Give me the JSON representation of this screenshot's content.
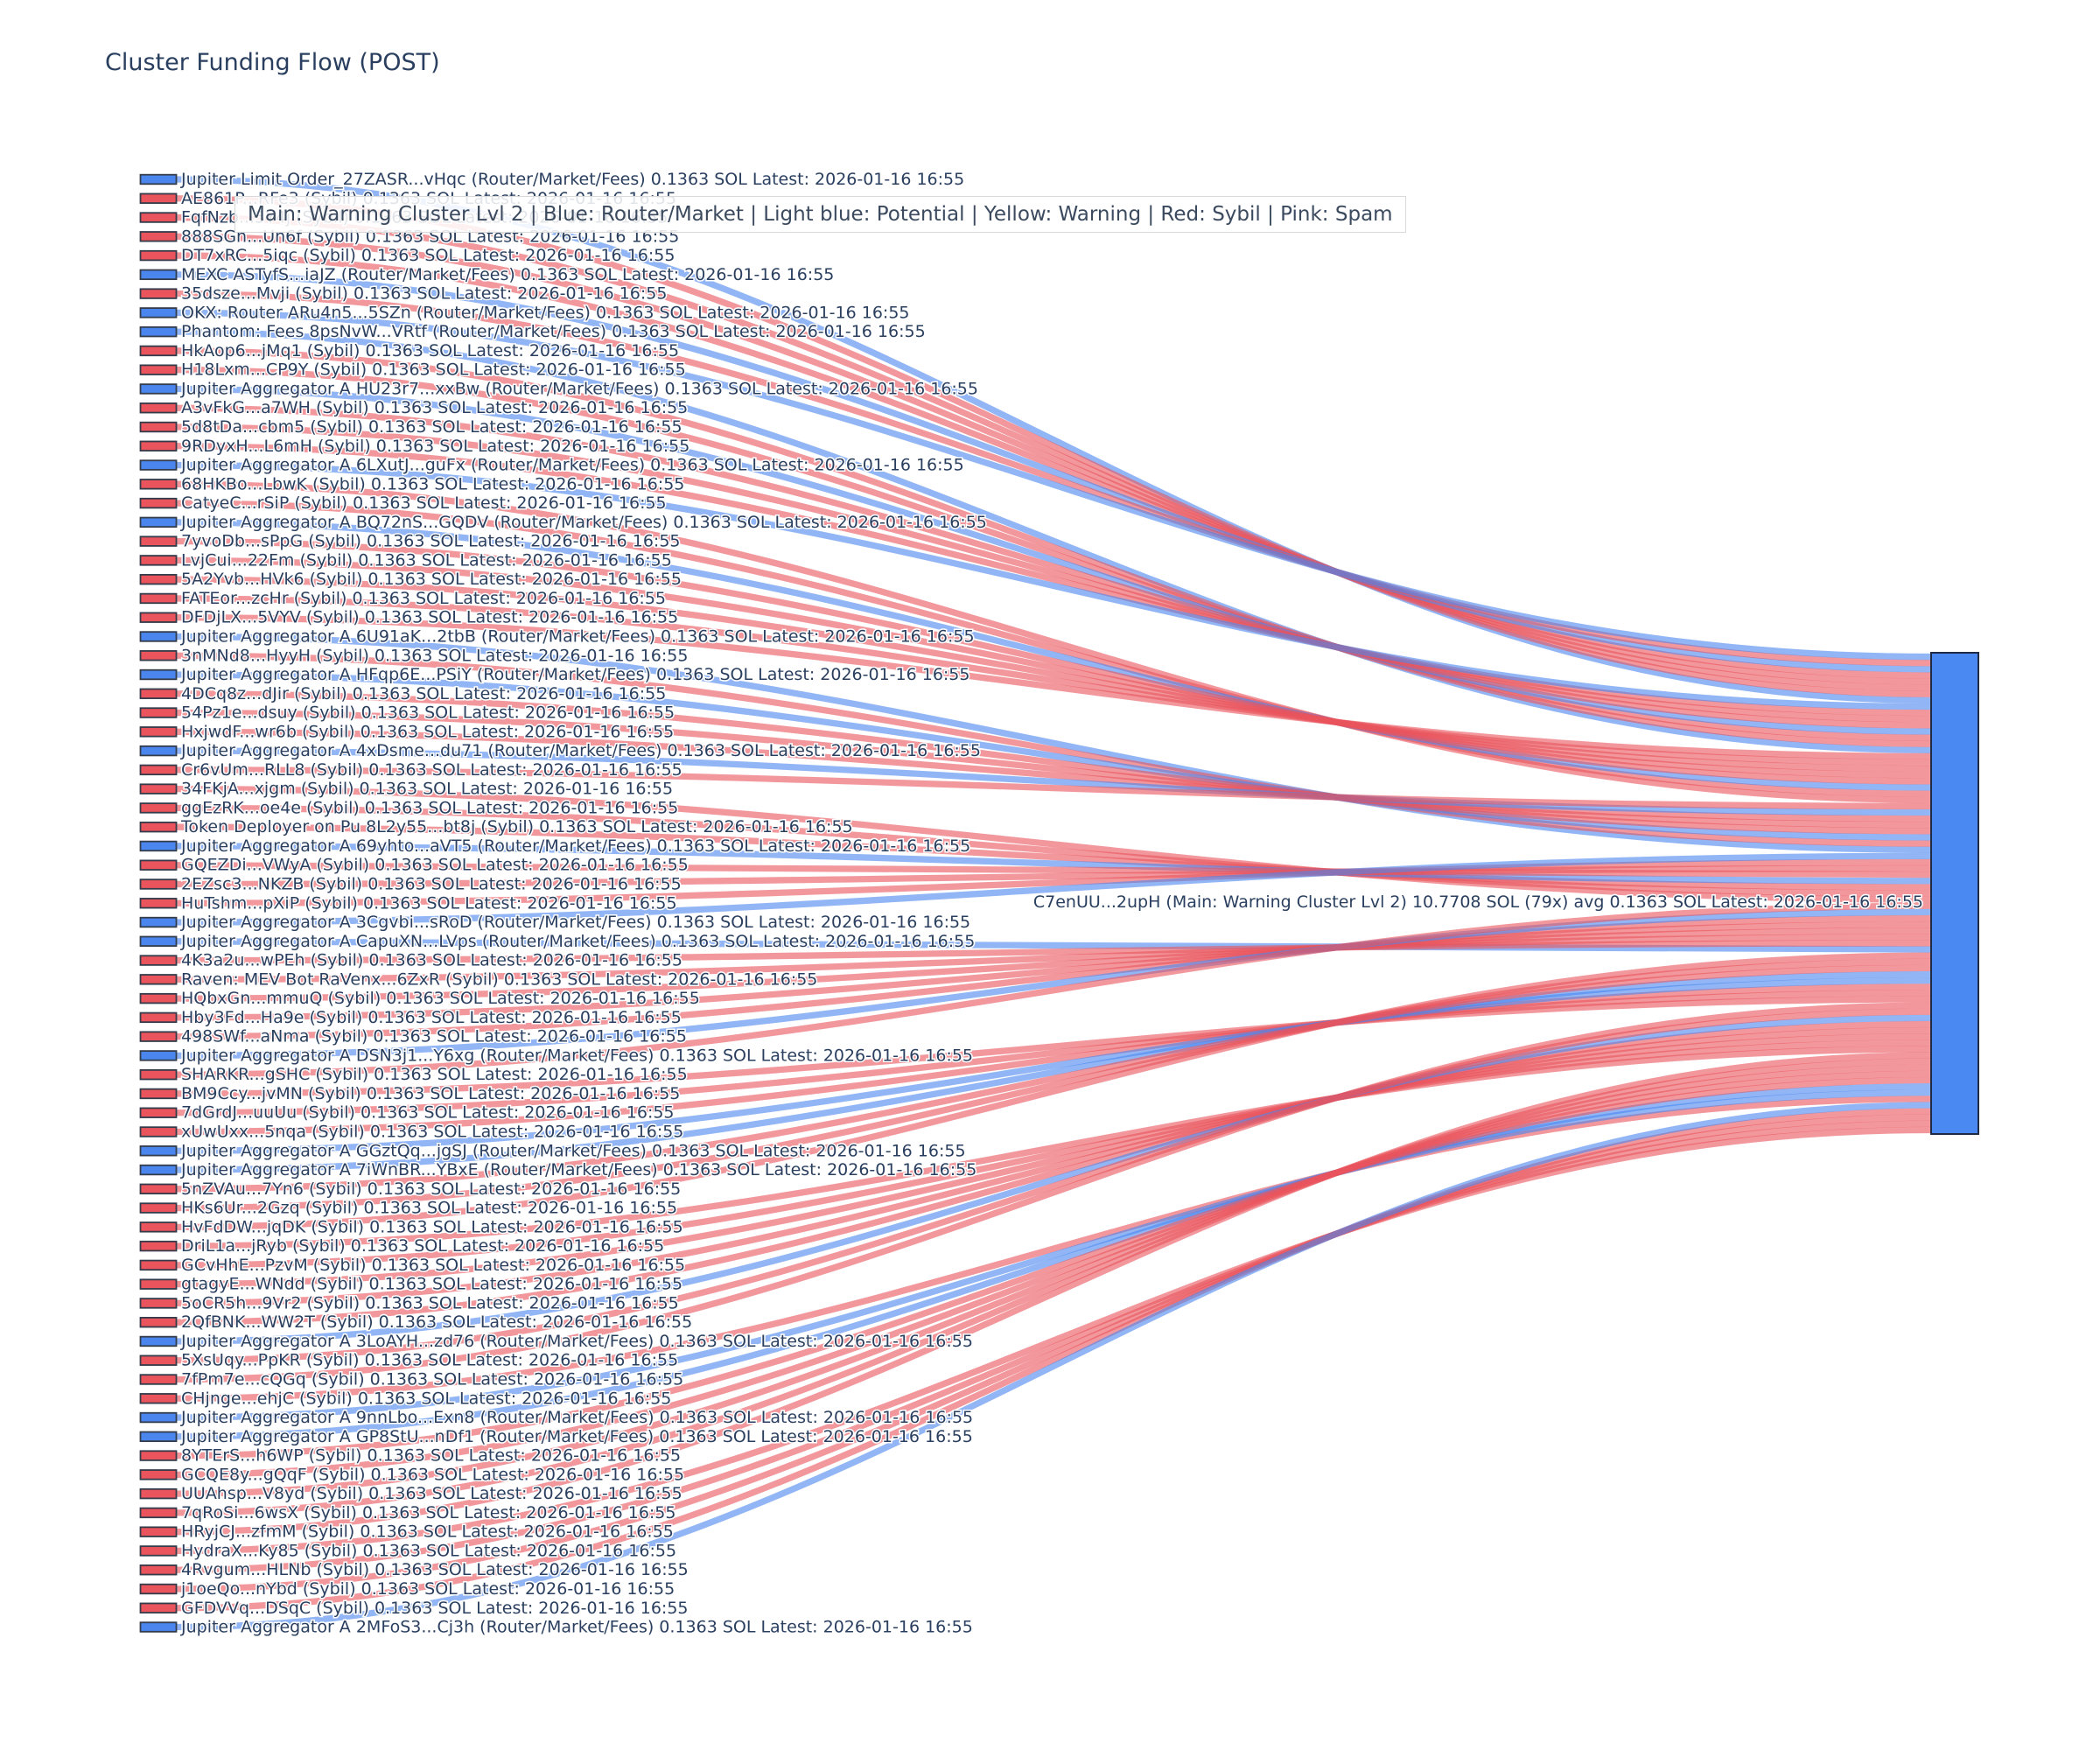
{
  "title": "Cluster Funding Flow (POST)",
  "legend": "Main: Warning Cluster Lvl 2  |  Blue: Router/Market | Light blue: Potential | Yellow: Warning | Red: Sybil | Pink: Spam",
  "colors": {
    "router_blue": "#4a86ee",
    "sybil_red": "#ea545c",
    "node_border": "#333c4a",
    "target_fill": "#4a89f2",
    "target_border": "#1f2a44",
    "text": "#2a3f5f"
  },
  "chart_data": {
    "type": "sankey",
    "title": "Cluster Funding Flow (POST)",
    "orientation": "horizontal, many left sources into one right target",
    "link_value_sol": 0.1363,
    "latest": "2026-01-16 16:55",
    "target": {
      "label": "C7enUU...2upH (Main: Warning Cluster Lvl 2) 10.7708 SOL (79x) avg 0.1363 SOL Latest: 2026-01-16 16:55",
      "name": "C7enUU...2upH",
      "cluster": "Main: Warning Cluster Lvl 2",
      "total_sol": 10.7708,
      "tx_count": 79,
      "avg_sol": 0.1363
    },
    "links": [
      {
        "type": "router",
        "label": "Jupiter Limit Order_27ZASR...vHqc (Router/Market/Fees) 0.1363 SOL Latest: 2026-01-16 16:55"
      },
      {
        "type": "sybil",
        "label": "AE861P...RFe3 (Sybil) 0.1363 SOL Latest: 2026-01-16 16:55"
      },
      {
        "type": "sybil",
        "label": "FqfNzb...5Y4j (Sybil) 0.1363 SOL Latest: 2026-01-16 16:55"
      },
      {
        "type": "sybil",
        "label": "888SGn...Un6f (Sybil) 0.1363 SOL Latest: 2026-01-16 16:55"
      },
      {
        "type": "sybil",
        "label": "DT7xRC...5iqc (Sybil) 0.1363 SOL Latest: 2026-01-16 16:55"
      },
      {
        "type": "router",
        "label": "MEXC ASTyfS...iaJZ (Router/Market/Fees) 0.1363 SOL Latest: 2026-01-16 16:55"
      },
      {
        "type": "sybil",
        "label": "35dsze...Mvji (Sybil) 0.1363 SOL Latest: 2026-01-16 16:55"
      },
      {
        "type": "router",
        "label": "OKX: Router ARu4n5...5SZn (Router/Market/Fees) 0.1363 SOL Latest: 2026-01-16 16:55"
      },
      {
        "type": "router",
        "label": "Phantom: Fees 8psNvW...VRtf (Router/Market/Fees) 0.1363 SOL Latest: 2026-01-16 16:55"
      },
      {
        "type": "sybil",
        "label": "HkAop6...jMq1 (Sybil) 0.1363 SOL Latest: 2026-01-16 16:55"
      },
      {
        "type": "sybil",
        "label": "H18Lxm...CP9Y (Sybil) 0.1363 SOL Latest: 2026-01-16 16:55"
      },
      {
        "type": "router",
        "label": "Jupiter Aggregator A HU23r7...xxBw (Router/Market/Fees) 0.1363 SOL Latest: 2026-01-16 16:55"
      },
      {
        "type": "sybil",
        "label": "A3vFkG...a7WH (Sybil) 0.1363 SOL Latest: 2026-01-16 16:55"
      },
      {
        "type": "sybil",
        "label": "5d8tDa...cbm5 (Sybil) 0.1363 SOL Latest: 2026-01-16 16:55"
      },
      {
        "type": "sybil",
        "label": "9RDyxH...L6mH (Sybil) 0.1363 SOL Latest: 2026-01-16 16:55"
      },
      {
        "type": "router",
        "label": "Jupiter Aggregator A 6LXutJ...guFx (Router/Market/Fees) 0.1363 SOL Latest: 2026-01-16 16:55"
      },
      {
        "type": "sybil",
        "label": "68HKBo...LbwK (Sybil) 0.1363 SOL Latest: 2026-01-16 16:55"
      },
      {
        "type": "sybil",
        "label": "CatyeC...rSiP (Sybil) 0.1363 SOL Latest: 2026-01-16 16:55"
      },
      {
        "type": "router",
        "label": "Jupiter Aggregator A BQ72nS...GQDV (Router/Market/Fees) 0.1363 SOL Latest: 2026-01-16 16:55"
      },
      {
        "type": "sybil",
        "label": "7yvoDb...sPpG (Sybil) 0.1363 SOL Latest: 2026-01-16 16:55"
      },
      {
        "type": "sybil",
        "label": "LvjCui...22Fm (Sybil) 0.1363 SOL Latest: 2026-01-16 16:55"
      },
      {
        "type": "sybil",
        "label": "5A2Yvb...HVk6 (Sybil) 0.1363 SOL Latest: 2026-01-16 16:55"
      },
      {
        "type": "sybil",
        "label": "FATEor...zcHr (Sybil) 0.1363 SOL Latest: 2026-01-16 16:55"
      },
      {
        "type": "sybil",
        "label": "DFDjLX...5VYV (Sybil) 0.1363 SOL Latest: 2026-01-16 16:55"
      },
      {
        "type": "router",
        "label": "Jupiter Aggregator A 6U91aK...2tbB (Router/Market/Fees) 0.1363 SOL Latest: 2026-01-16 16:55"
      },
      {
        "type": "sybil",
        "label": "3nMNd8...HyyH (Sybil) 0.1363 SOL Latest: 2026-01-16 16:55"
      },
      {
        "type": "router",
        "label": "Jupiter Aggregator A HFqp6E...PSiY (Router/Market/Fees) 0.1363 SOL Latest: 2026-01-16 16:55"
      },
      {
        "type": "sybil",
        "label": "4DCq8z...dJir (Sybil) 0.1363 SOL Latest: 2026-01-16 16:55"
      },
      {
        "type": "sybil",
        "label": "54Pz1e...dsuy (Sybil) 0.1363 SOL Latest: 2026-01-16 16:55"
      },
      {
        "type": "sybil",
        "label": "HxjwdF...wr6b (Sybil) 0.1363 SOL Latest: 2026-01-16 16:55"
      },
      {
        "type": "router",
        "label": "Jupiter Aggregator A 4xDsme...du71 (Router/Market/Fees) 0.1363 SOL Latest: 2026-01-16 16:55"
      },
      {
        "type": "sybil",
        "label": "Cr6vUm...RLL8 (Sybil) 0.1363 SOL Latest: 2026-01-16 16:55"
      },
      {
        "type": "sybil",
        "label": "34FKjA...xjgm (Sybil) 0.1363 SOL Latest: 2026-01-16 16:55"
      },
      {
        "type": "sybil",
        "label": "ggEzRK...oe4e (Sybil) 0.1363 SOL Latest: 2026-01-16 16:55"
      },
      {
        "type": "sybil",
        "label": "Token Deployer on Pu 8L2y55...bt8j (Sybil) 0.1363 SOL Latest: 2026-01-16 16:55"
      },
      {
        "type": "router",
        "label": "Jupiter Aggregator A 69yhto...aVT5 (Router/Market/Fees) 0.1363 SOL Latest: 2026-01-16 16:55"
      },
      {
        "type": "sybil",
        "label": "GQEZDi...VWyA (Sybil) 0.1363 SOL Latest: 2026-01-16 16:55"
      },
      {
        "type": "sybil",
        "label": "2EZsc3...NKZB (Sybil) 0.1363 SOL Latest: 2026-01-16 16:55"
      },
      {
        "type": "sybil",
        "label": "HuTshm...pXiP (Sybil) 0.1363 SOL Latest: 2026-01-16 16:55"
      },
      {
        "type": "router",
        "label": "Jupiter Aggregator A 3Cgvbi...sRoD (Router/Market/Fees) 0.1363 SOL Latest: 2026-01-16 16:55"
      },
      {
        "type": "router",
        "label": "Jupiter Aggregator A CapuXN...LVps (Router/Market/Fees) 0.1363 SOL Latest: 2026-01-16 16:55"
      },
      {
        "type": "sybil",
        "label": "4K3a2u...wPEh (Sybil) 0.1363 SOL Latest: 2026-01-16 16:55"
      },
      {
        "type": "sybil",
        "label": "Raven: MEV Bot RaVenx...6ZxR (Sybil) 0.1363 SOL Latest: 2026-01-16 16:55"
      },
      {
        "type": "sybil",
        "label": "HQbxGn...mmuQ (Sybil) 0.1363 SOL Latest: 2026-01-16 16:55"
      },
      {
        "type": "sybil",
        "label": "Hby3Fd...Ha9e (Sybil) 0.1363 SOL Latest: 2026-01-16 16:55"
      },
      {
        "type": "sybil",
        "label": "498SWf...aNma (Sybil) 0.1363 SOL Latest: 2026-01-16 16:55"
      },
      {
        "type": "router",
        "label": "Jupiter Aggregator A DSN3j1...Y6xg (Router/Market/Fees) 0.1363 SOL Latest: 2026-01-16 16:55"
      },
      {
        "type": "sybil",
        "label": "SHARKR...gSHC (Sybil) 0.1363 SOL Latest: 2026-01-16 16:55"
      },
      {
        "type": "sybil",
        "label": "BM9Ccy...jvMN (Sybil) 0.1363 SOL Latest: 2026-01-16 16:55"
      },
      {
        "type": "sybil",
        "label": "7dGrdJ...uuUu (Sybil) 0.1363 SOL Latest: 2026-01-16 16:55"
      },
      {
        "type": "sybil",
        "label": "xUwUxx...5nqa (Sybil) 0.1363 SOL Latest: 2026-01-16 16:55"
      },
      {
        "type": "router",
        "label": "Jupiter Aggregator A GGztQq...jgSJ (Router/Market/Fees) 0.1363 SOL Latest: 2026-01-16 16:55"
      },
      {
        "type": "router",
        "label": "Jupiter Aggregator A 7iWnBR...YBxE (Router/Market/Fees) 0.1363 SOL Latest: 2026-01-16 16:55"
      },
      {
        "type": "sybil",
        "label": "5nZVAu...7Yn6 (Sybil) 0.1363 SOL Latest: 2026-01-16 16:55"
      },
      {
        "type": "sybil",
        "label": "HKs6Ur...2Gzq (Sybil) 0.1363 SOL Latest: 2026-01-16 16:55"
      },
      {
        "type": "sybil",
        "label": "HvFdDW...jqDK (Sybil) 0.1363 SOL Latest: 2026-01-16 16:55"
      },
      {
        "type": "sybil",
        "label": "DriL1a...jRyb (Sybil) 0.1363 SOL Latest: 2026-01-16 16:55"
      },
      {
        "type": "sybil",
        "label": "GCvHhE...PzvM (Sybil) 0.1363 SOL Latest: 2026-01-16 16:55"
      },
      {
        "type": "sybil",
        "label": "gtagyE...WNdd (Sybil) 0.1363 SOL Latest: 2026-01-16 16:55"
      },
      {
        "type": "sybil",
        "label": "5oCR5h...9Vr2 (Sybil) 0.1363 SOL Latest: 2026-01-16 16:55"
      },
      {
        "type": "sybil",
        "label": "2QfBNK...WW2T (Sybil) 0.1363 SOL Latest: 2026-01-16 16:55"
      },
      {
        "type": "router",
        "label": "Jupiter Aggregator A 3LoAYH...zd76 (Router/Market/Fees) 0.1363 SOL Latest: 2026-01-16 16:55"
      },
      {
        "type": "sybil",
        "label": "5XsUqy...PpKR (Sybil) 0.1363 SOL Latest: 2026-01-16 16:55"
      },
      {
        "type": "sybil",
        "label": "7fPm7e...cQGq (Sybil) 0.1363 SOL Latest: 2026-01-16 16:55"
      },
      {
        "type": "sybil",
        "label": "CHjnge...ehjC (Sybil) 0.1363 SOL Latest: 2026-01-16 16:55"
      },
      {
        "type": "router",
        "label": "Jupiter Aggregator A 9nnLbo...Exn8 (Router/Market/Fees) 0.1363 SOL Latest: 2026-01-16 16:55"
      },
      {
        "type": "router",
        "label": "Jupiter Aggregator A GP8StU...nDf1 (Router/Market/Fees) 0.1363 SOL Latest: 2026-01-16 16:55"
      },
      {
        "type": "sybil",
        "label": "8YTErS...h6WP (Sybil) 0.1363 SOL Latest: 2026-01-16 16:55"
      },
      {
        "type": "sybil",
        "label": "GCQE8y...gQqF (Sybil) 0.1363 SOL Latest: 2026-01-16 16:55"
      },
      {
        "type": "sybil",
        "label": "UUAhsp...V8yd (Sybil) 0.1363 SOL Latest: 2026-01-16 16:55"
      },
      {
        "type": "sybil",
        "label": "7qRoSi...6wsX (Sybil) 0.1363 SOL Latest: 2026-01-16 16:55"
      },
      {
        "type": "sybil",
        "label": "HRyjCJ...zfmM (Sybil) 0.1363 SOL Latest: 2026-01-16 16:55"
      },
      {
        "type": "sybil",
        "label": "HydraX...Ky85 (Sybil) 0.1363 SOL Latest: 2026-01-16 16:55"
      },
      {
        "type": "sybil",
        "label": "4Rvgum...HLNb (Sybil) 0.1363 SOL Latest: 2026-01-16 16:55"
      },
      {
        "type": "sybil",
        "label": "j1oeQo...nYbd (Sybil) 0.1363 SOL Latest: 2026-01-16 16:55"
      },
      {
        "type": "sybil",
        "label": "GFDVVq...DSqC (Sybil) 0.1363 SOL Latest: 2026-01-16 16:55"
      },
      {
        "type": "router",
        "label": "Jupiter Aggregator A 2MFoS3...Cj3h (Router/Market/Fees) 0.1363 SOL Latest: 2026-01-16 16:55"
      }
    ]
  }
}
